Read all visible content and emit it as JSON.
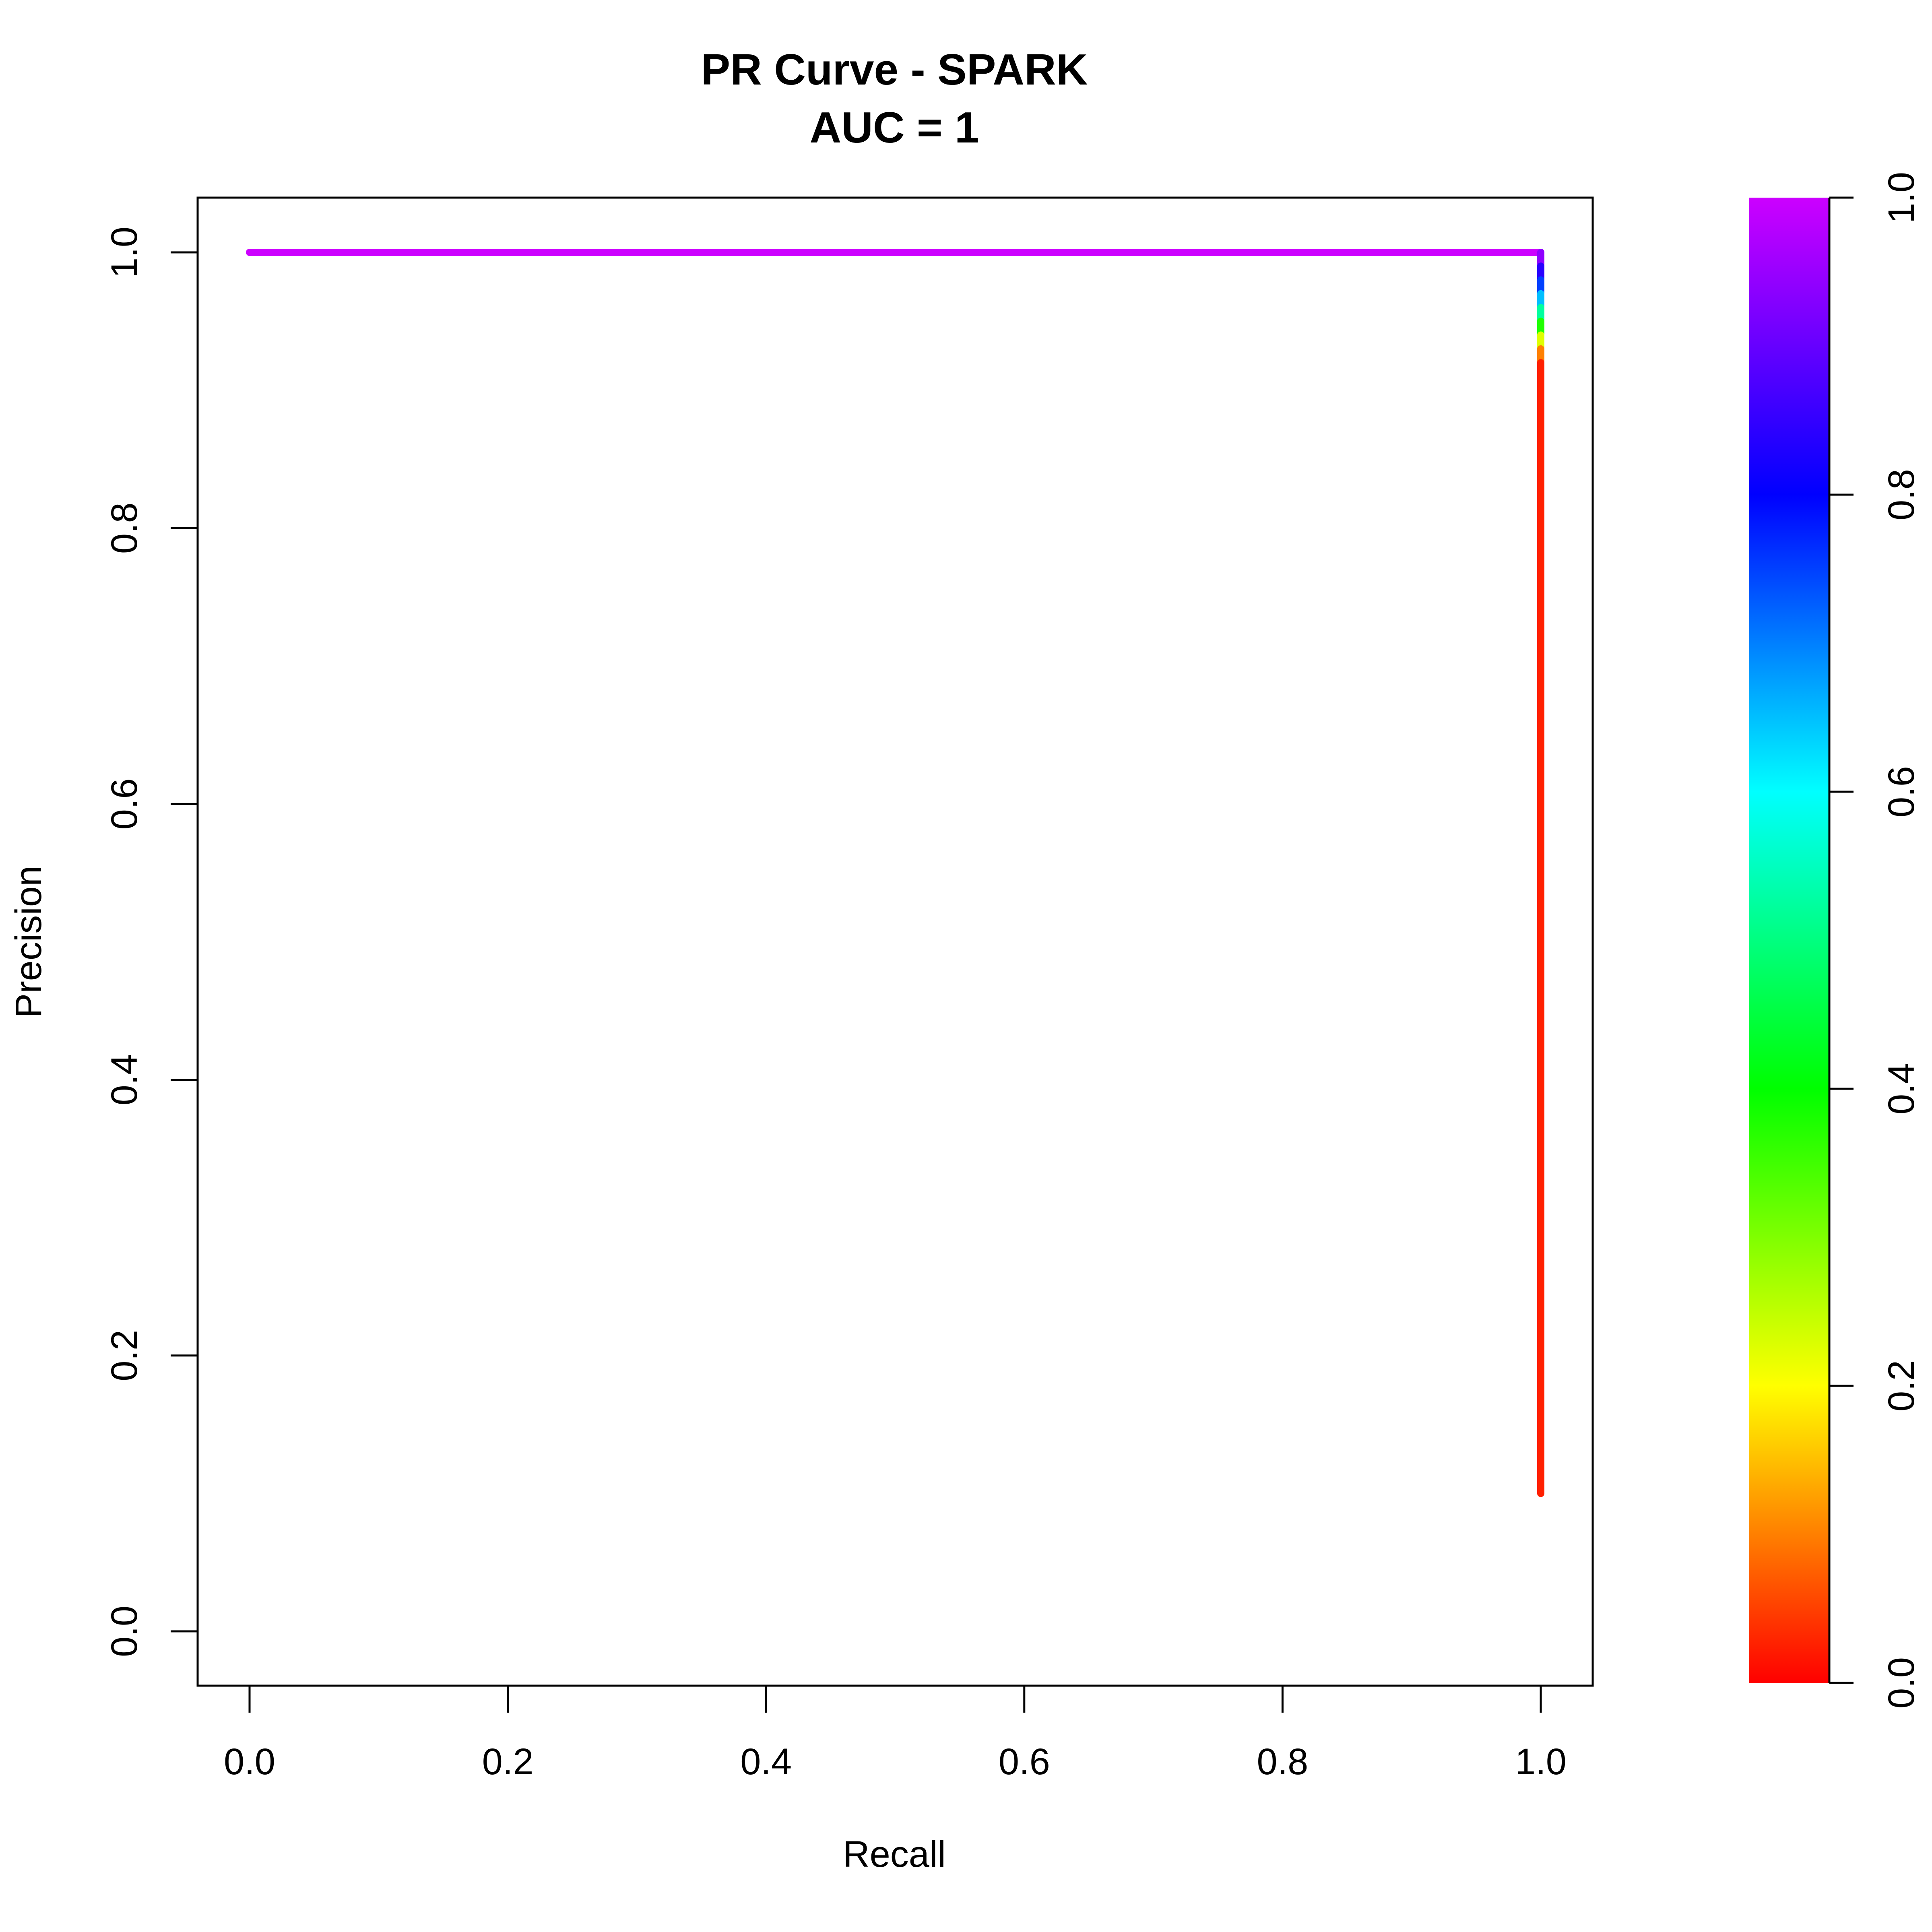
{
  "chart_data": {
    "type": "line",
    "title": "PR Curve - SPARK",
    "subtitle": "AUC = 1",
    "xlabel": "Recall",
    "ylabel": "Precision",
    "xlim": [
      0.0,
      1.0
    ],
    "ylim": [
      0.0,
      1.0
    ],
    "xticks": [
      "0.0",
      "0.2",
      "0.4",
      "0.6",
      "0.8",
      "1.0"
    ],
    "yticks": [
      "0.0",
      "0.2",
      "0.4",
      "0.6",
      "0.8",
      "1.0"
    ],
    "grid": false,
    "series": [
      {
        "x": [
          0.0,
          1.0,
          1.0,
          1.0,
          1.0,
          1.0,
          1.0,
          1.0,
          1.0,
          1.0,
          1.0
        ],
        "y": [
          1.0,
          1.0,
          0.99,
          0.98,
          0.97,
          0.96,
          0.95,
          0.94,
          0.93,
          0.92,
          0.1
        ],
        "threshold": [
          1.0,
          1.0,
          0.88,
          0.8,
          0.7,
          0.6,
          0.45,
          0.3,
          0.15,
          0.05,
          0.0
        ]
      }
    ],
    "colorbar": {
      "ticks": [
        "0.0",
        "0.2",
        "0.4",
        "0.6",
        "0.8",
        "1.0"
      ],
      "range": [
        0.0,
        1.0
      ],
      "colormap": "rainbow",
      "stops": [
        {
          "value": 0.0,
          "color": "#ff0000"
        },
        {
          "value": 0.2,
          "color": "#ffff00"
        },
        {
          "value": 0.4,
          "color": "#00ff00"
        },
        {
          "value": 0.6,
          "color": "#00ffff"
        },
        {
          "value": 0.8,
          "color": "#0000ff"
        },
        {
          "value": 1.0,
          "color": "#cc00ff"
        }
      ]
    }
  }
}
